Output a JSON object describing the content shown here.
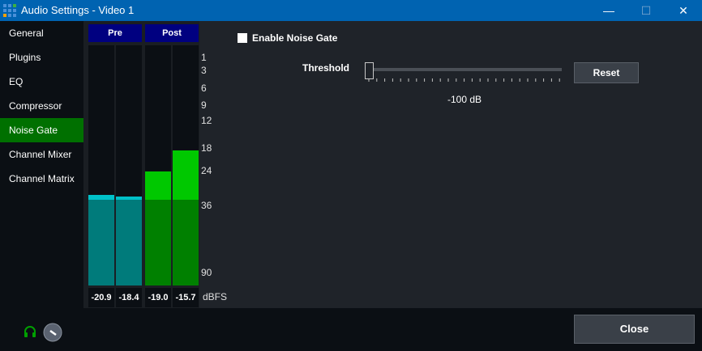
{
  "window": {
    "title": "Audio Settings - Video 1",
    "minimize": "—",
    "maximize": "☐",
    "close": "✕"
  },
  "sidebar": {
    "items": [
      {
        "label": "General"
      },
      {
        "label": "Plugins"
      },
      {
        "label": "EQ"
      },
      {
        "label": "Compressor"
      },
      {
        "label": "Noise Gate",
        "active": true
      },
      {
        "label": "Channel Mixer"
      },
      {
        "label": "Channel Matrix"
      }
    ]
  },
  "meters": {
    "pre_label": "Pre",
    "post_label": "Post",
    "unit": "dBFS",
    "scale": [
      "1",
      "3",
      "6",
      "9",
      "12",
      "18",
      "24",
      "36",
      "90"
    ],
    "channels": [
      {
        "group": "pre",
        "value": "-20.9"
      },
      {
        "group": "pre",
        "value": "-18.4"
      },
      {
        "group": "post",
        "value": "-19.0"
      },
      {
        "group": "post",
        "value": "-15.7"
      }
    ],
    "colors": {
      "pre": "#007b7b",
      "pre_peak": "#00c0c8",
      "post": "#008000",
      "post_peak": "#00c800"
    }
  },
  "noise_gate": {
    "enable_label": "Enable Noise Gate",
    "enabled": false,
    "threshold_label": "Threshold",
    "threshold_value": "-100 dB",
    "reset_label": "Reset"
  },
  "footer": {
    "close_label": "Close",
    "headphones_color": "#00a000"
  }
}
